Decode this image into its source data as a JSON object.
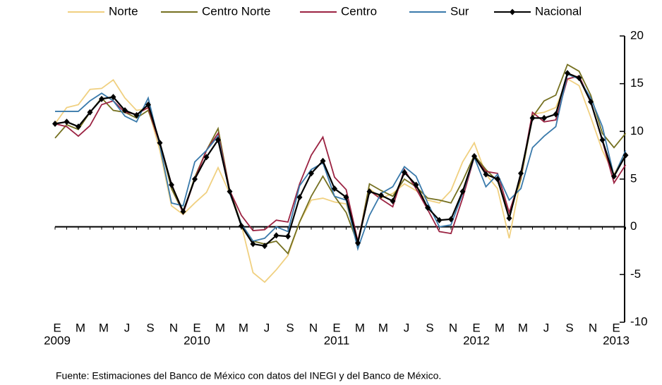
{
  "chart_data": {
    "type": "line",
    "categories": [
      "E",
      null,
      "M",
      null,
      "M",
      null,
      "J",
      null,
      "S",
      null,
      "N",
      null,
      "E",
      null,
      "M",
      null,
      "M",
      null,
      "J",
      null,
      "S",
      null,
      "N",
      null,
      "E",
      null,
      "M",
      null,
      "M",
      null,
      "J",
      null,
      "S",
      null,
      "N",
      null,
      "E",
      null,
      "M",
      null,
      "M",
      null,
      "J",
      null,
      "S",
      null,
      "N",
      null,
      "E",
      null
    ],
    "category_years": [
      "2009",
      null,
      null,
      null,
      null,
      null,
      null,
      null,
      null,
      null,
      null,
      null,
      "2010",
      null,
      null,
      null,
      null,
      null,
      null,
      null,
      null,
      null,
      null,
      null,
      "2011",
      null,
      null,
      null,
      null,
      null,
      null,
      null,
      null,
      null,
      null,
      null,
      "2012",
      null,
      null,
      null,
      null,
      null,
      null,
      null,
      null,
      null,
      null,
      null,
      "2013",
      null
    ],
    "series": [
      {
        "name": "Norte",
        "color": "#f0d080",
        "values": [
          10.8,
          12.5,
          12.8,
          14.4,
          14.5,
          15.4,
          13.5,
          12.2,
          12.4,
          8.0,
          2.2,
          1.3,
          2.5,
          3.6,
          6.2,
          3.5,
          0.2,
          -4.8,
          -5.8,
          -4.5,
          -3.0,
          0.5,
          2.8,
          3.0,
          2.6,
          2.4,
          -1.5,
          4.0,
          3.0,
          3.5,
          4.5,
          3.8,
          2.8,
          2.5,
          3.8,
          6.8,
          8.8,
          5.5,
          4.0,
          -1.2,
          5.0,
          11.8,
          12.0,
          12.5,
          15.5,
          14.8,
          11.5,
          8.0,
          5.5,
          7.8
        ]
      },
      {
        "name": "Centro Norte",
        "color": "#757020",
        "values": [
          9.3,
          10.7,
          10.2,
          12.0,
          13.5,
          12.2,
          12.0,
          11.4,
          12.2,
          8.8,
          4.0,
          1.5,
          5.2,
          8.0,
          10.3,
          3.8,
          0.3,
          -1.5,
          -1.8,
          -1.5,
          -2.8,
          0.5,
          3.2,
          5.3,
          3.2,
          1.5,
          -1.8,
          4.5,
          3.8,
          3.2,
          5.0,
          4.2,
          3.0,
          2.8,
          2.5,
          4.8,
          7.5,
          6.0,
          4.8,
          1.5,
          5.0,
          11.5,
          13.2,
          13.8,
          17.0,
          16.3,
          13.8,
          9.8,
          8.3,
          9.8
        ]
      },
      {
        "name": "Centro",
        "color": "#9b2342",
        "values": [
          10.8,
          10.5,
          9.5,
          10.6,
          12.8,
          13.2,
          12.0,
          11.8,
          12.5,
          8.6,
          4.5,
          1.4,
          5.0,
          8.0,
          9.8,
          3.8,
          1.2,
          -0.4,
          -0.3,
          0.7,
          0.5,
          4.5,
          7.5,
          9.4,
          5.2,
          3.9,
          -1.5,
          3.8,
          2.9,
          2.1,
          6.0,
          4.0,
          1.8,
          -0.5,
          -0.7,
          3.0,
          7.3,
          5.8,
          5.6,
          1.5,
          5.3,
          12.0,
          11.0,
          11.2,
          15.5,
          15.8,
          13.2,
          9.0,
          4.6,
          6.5
        ]
      },
      {
        "name": "Sur",
        "color": "#3a7aab",
        "values": [
          12.1,
          12.1,
          12.1,
          13.2,
          14.0,
          13.2,
          11.6,
          11.0,
          13.5,
          8.5,
          2.5,
          2.2,
          6.8,
          8.0,
          9.5,
          3.5,
          0.3,
          -1.5,
          -1.2,
          0.0,
          -0.5,
          4.3,
          6.0,
          6.7,
          3.2,
          2.8,
          -2.3,
          1.2,
          3.5,
          4.2,
          6.3,
          5.3,
          2.5,
          0.0,
          0.2,
          3.5,
          7.3,
          4.2,
          5.5,
          2.8,
          4.0,
          8.3,
          9.5,
          10.5,
          16.0,
          15.5,
          13.5,
          10.5,
          5.3,
          8.0
        ]
      },
      {
        "name": "Nacional",
        "color": "#000000",
        "marker": "diamond",
        "values": [
          10.8,
          11.0,
          10.5,
          12.0,
          13.4,
          13.6,
          12.2,
          11.7,
          12.8,
          8.8,
          4.4,
          1.6,
          5.0,
          7.3,
          9.1,
          3.7,
          0.1,
          -1.8,
          -2.0,
          -0.9,
          -1.0,
          3.1,
          5.6,
          6.9,
          4.0,
          3.1,
          -1.7,
          3.7,
          3.3,
          2.7,
          5.7,
          4.4,
          2.0,
          0.7,
          0.8,
          3.7,
          7.4,
          5.5,
          5.0,
          0.9,
          5.6,
          11.4,
          11.4,
          11.8,
          16.1,
          15.6,
          13.1,
          9.1,
          5.3,
          7.5
        ]
      }
    ],
    "ylim": [
      -10,
      20
    ],
    "yticks": [
      -10,
      -5,
      0,
      5,
      10,
      15,
      20
    ],
    "source": "Fuente: Estimaciones del Banco de México con datos del INEGI y del Banco de México."
  }
}
